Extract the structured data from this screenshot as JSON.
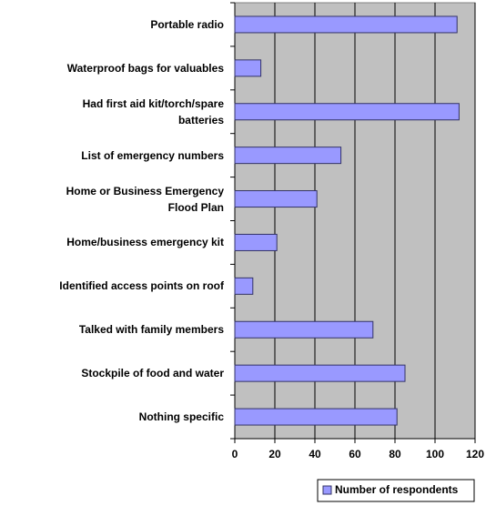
{
  "chart_data": {
    "type": "bar",
    "orientation": "horizontal",
    "categories": [
      "Portable radio",
      "Waterproof bags for valuables",
      "Had first aid kit/torch/spare\nbatteries",
      "List of emergency numbers",
      "Home or Business Emergency\nFlood Plan",
      "Home/business emergency kit",
      "Identified access points on roof",
      "Talked with family members",
      "Stockpile of food and water",
      "Nothing specific"
    ],
    "series": [
      {
        "name": "Number of respondents",
        "color": "#9999ff",
        "values": [
          111,
          13,
          112,
          53,
          41,
          21,
          9,
          69,
          85,
          81
        ]
      }
    ],
    "xlim": [
      0,
      120
    ],
    "xticks": [
      0,
      20,
      40,
      60,
      80,
      100,
      120
    ],
    "grid": true,
    "legend": "bottom"
  }
}
